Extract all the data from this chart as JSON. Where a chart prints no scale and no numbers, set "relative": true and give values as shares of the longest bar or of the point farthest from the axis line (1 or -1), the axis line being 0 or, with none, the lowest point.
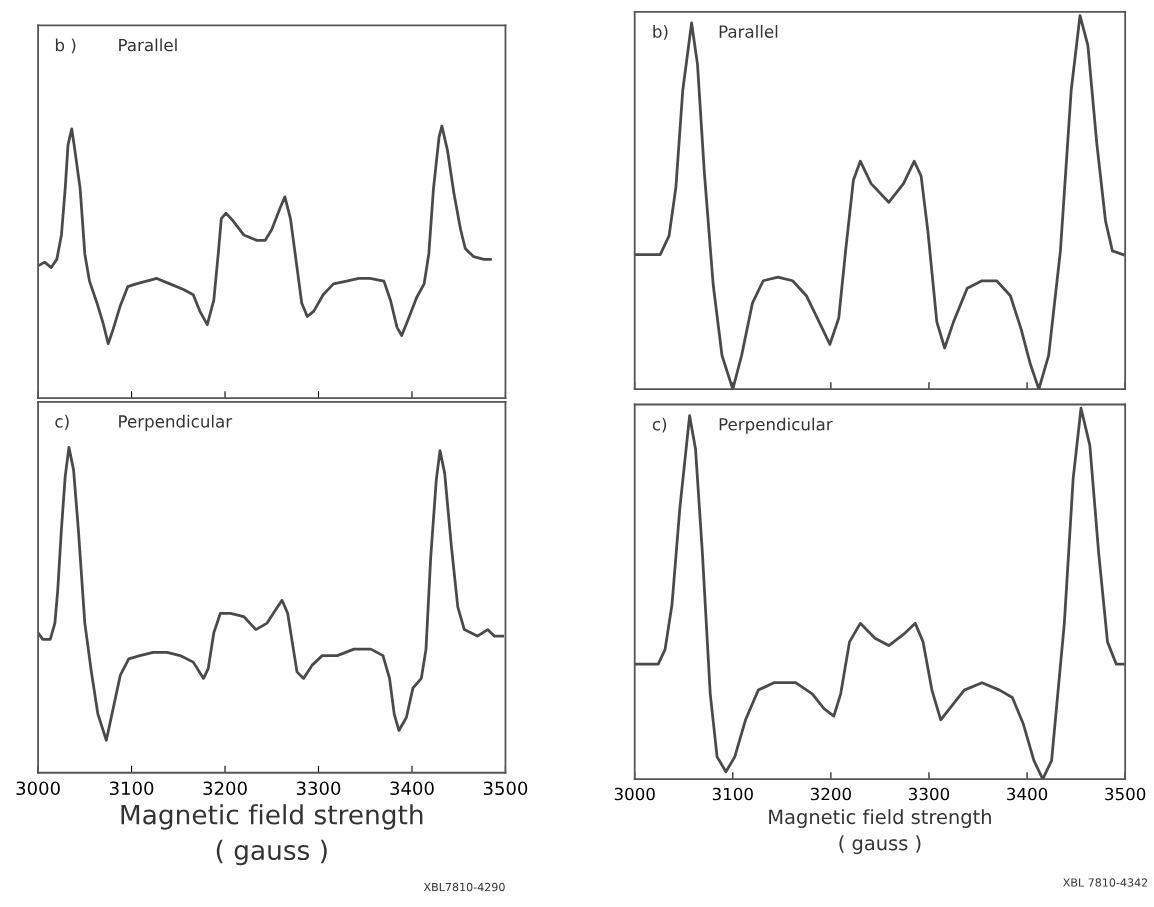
{
  "chart_data": [
    {
      "type": "line",
      "relative": true,
      "title": "b )",
      "subtitle": "Parallel",
      "xlim": [
        3000,
        3500
      ],
      "xticks": [
        3000,
        3100,
        3200,
        3300,
        3400,
        3500
      ],
      "tick_labels": false,
      "x": [
        3002,
        3007,
        3014,
        3020,
        3025,
        3029,
        3032,
        3036,
        3039,
        3045,
        3050,
        3055,
        3063,
        3070,
        3075,
        3080,
        3088,
        3096,
        3105,
        3116,
        3127,
        3141,
        3155,
        3166,
        3173,
        3181,
        3188,
        3193,
        3196,
        3201,
        3209,
        3220,
        3234,
        3243,
        3250,
        3259,
        3264,
        3270,
        3277,
        3282,
        3288,
        3295,
        3305,
        3316,
        3330,
        3343,
        3355,
        3370,
        3377,
        3384,
        3389,
        3396,
        3405,
        3413,
        3418,
        3423,
        3429,
        3432,
        3438,
        3445,
        3452,
        3457,
        3466,
        3477,
        3484
      ],
      "series": [
        {
          "color": "#4a4a4a",
          "values": [
            0.49,
            0.5,
            0.48,
            0.51,
            0.6,
            0.77,
            0.93,
            0.99,
            0.92,
            0.77,
            0.53,
            0.43,
            0.35,
            0.27,
            0.2,
            0.25,
            0.34,
            0.41,
            0.42,
            0.43,
            0.44,
            0.42,
            0.4,
            0.38,
            0.32,
            0.27,
            0.36,
            0.54,
            0.66,
            0.68,
            0.65,
            0.6,
            0.58,
            0.58,
            0.62,
            0.7,
            0.74,
            0.66,
            0.48,
            0.35,
            0.3,
            0.32,
            0.38,
            0.42,
            0.43,
            0.44,
            0.44,
            0.43,
            0.36,
            0.26,
            0.23,
            0.29,
            0.37,
            0.42,
            0.53,
            0.77,
            0.96,
            1.0,
            0.91,
            0.75,
            0.62,
            0.55,
            0.52,
            0.51,
            0.51
          ]
        }
      ]
    },
    {
      "type": "line",
      "relative": true,
      "title": "c)",
      "subtitle": "Perpendicular",
      "xlim": [
        3000,
        3500
      ],
      "xticks": [
        3000,
        3100,
        3200,
        3300,
        3400,
        3500
      ],
      "tick_labels": "x",
      "xlabel": "Magnetic field strength\n( gauss )",
      "annotations": [
        "XBL7810-4290"
      ],
      "x": [
        3000,
        3005,
        3013,
        3018,
        3021,
        3025,
        3029,
        3033,
        3038,
        3043,
        3050,
        3057,
        3064,
        3073,
        3079,
        3088,
        3097,
        3109,
        3123,
        3138,
        3152,
        3166,
        3177,
        3182,
        3188,
        3195,
        3206,
        3220,
        3233,
        3245,
        3254,
        3261,
        3267,
        3272,
        3277,
        3284,
        3293,
        3304,
        3320,
        3338,
        3356,
        3369,
        3376,
        3381,
        3386,
        3394,
        3401,
        3410,
        3415,
        3420,
        3426,
        3430,
        3435,
        3442,
        3449,
        3456,
        3470,
        3481,
        3488,
        3497
      ],
      "series": [
        {
          "color": "#4a4a4a",
          "values": [
            0.43,
            0.41,
            0.41,
            0.46,
            0.56,
            0.75,
            0.91,
            1.0,
            0.93,
            0.75,
            0.46,
            0.31,
            0.18,
            0.1,
            0.18,
            0.3,
            0.35,
            0.36,
            0.37,
            0.37,
            0.36,
            0.34,
            0.29,
            0.32,
            0.43,
            0.49,
            0.49,
            0.48,
            0.44,
            0.46,
            0.5,
            0.53,
            0.49,
            0.4,
            0.31,
            0.29,
            0.33,
            0.36,
            0.36,
            0.38,
            0.38,
            0.36,
            0.29,
            0.18,
            0.13,
            0.17,
            0.26,
            0.29,
            0.38,
            0.66,
            0.9,
            0.99,
            0.92,
            0.7,
            0.51,
            0.44,
            0.42,
            0.44,
            0.42,
            0.42
          ]
        }
      ]
    },
    {
      "type": "line",
      "relative": true,
      "title": "b)",
      "subtitle": "Parallel",
      "xlim": [
        3000,
        3500
      ],
      "xticks": [
        3000,
        3100,
        3200,
        3300,
        3400,
        3500
      ],
      "tick_labels": false,
      "x": [
        3000,
        3026,
        3035,
        3042,
        3049,
        3058,
        3064,
        3071,
        3080,
        3089,
        3100,
        3109,
        3120,
        3131,
        3146,
        3161,
        3175,
        3188,
        3199,
        3208,
        3215,
        3223,
        3230,
        3241,
        3259,
        3274,
        3285,
        3292,
        3299,
        3308,
        3316,
        3325,
        3339,
        3354,
        3369,
        3383,
        3394,
        3403,
        3412,
        3422,
        3434,
        3445,
        3454,
        3462,
        3471,
        3480,
        3487,
        3498
      ],
      "series": [
        {
          "color": "#4a4a4a",
          "values": [
            0.36,
            0.36,
            0.41,
            0.54,
            0.8,
            0.98,
            0.87,
            0.58,
            0.28,
            0.09,
            0.0,
            0.09,
            0.23,
            0.29,
            0.3,
            0.29,
            0.25,
            0.18,
            0.12,
            0.19,
            0.37,
            0.56,
            0.61,
            0.55,
            0.5,
            0.55,
            0.61,
            0.57,
            0.42,
            0.18,
            0.11,
            0.18,
            0.27,
            0.29,
            0.29,
            0.25,
            0.16,
            0.07,
            0.0,
            0.09,
            0.37,
            0.8,
            1.0,
            0.92,
            0.66,
            0.45,
            0.37,
            0.36
          ]
        }
      ]
    },
    {
      "type": "line",
      "relative": true,
      "title": "c)",
      "subtitle": "Perpendicular",
      "xlim": [
        3000,
        3500
      ],
      "xticks": [
        3000,
        3100,
        3200,
        3300,
        3400,
        3500
      ],
      "tick_labels": "x",
      "xlabel": "Magnetic field strength\n( gauss )",
      "annotations": [
        "XBL 7810-4342"
      ],
      "x": [
        3000,
        3024,
        3031,
        3038,
        3046,
        3056,
        3062,
        3069,
        3077,
        3084,
        3093,
        3102,
        3113,
        3126,
        3142,
        3164,
        3181,
        3193,
        3203,
        3210,
        3219,
        3230,
        3245,
        3259,
        3274,
        3286,
        3294,
        3303,
        3312,
        3321,
        3336,
        3354,
        3372,
        3385,
        3396,
        3407,
        3416,
        3425,
        3438,
        3447,
        3455,
        3464,
        3473,
        3482,
        3491,
        3498
      ],
      "series": [
        {
          "color": "#4a4a4a",
          "values": [
            0.31,
            0.31,
            0.35,
            0.47,
            0.73,
            0.98,
            0.89,
            0.61,
            0.23,
            0.06,
            0.02,
            0.06,
            0.16,
            0.24,
            0.26,
            0.26,
            0.23,
            0.19,
            0.17,
            0.23,
            0.37,
            0.42,
            0.38,
            0.36,
            0.39,
            0.42,
            0.37,
            0.24,
            0.16,
            0.19,
            0.24,
            0.26,
            0.24,
            0.22,
            0.15,
            0.05,
            0.0,
            0.05,
            0.42,
            0.81,
            1.0,
            0.9,
            0.61,
            0.37,
            0.31,
            0.31
          ]
        }
      ]
    }
  ]
}
